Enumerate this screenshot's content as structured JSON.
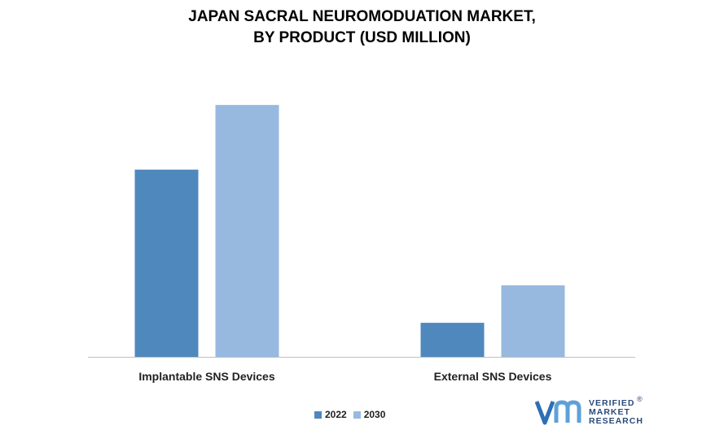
{
  "chart_data": {
    "type": "bar",
    "title_lines": [
      "JAPAN SACRAL NEUROMODUATION MARKET,",
      "BY PRODUCT (USD MILLION)"
    ],
    "categories": [
      "Implantable SNS Devices",
      "External SNS Devices"
    ],
    "series": [
      {
        "name": "2022",
        "values": [
          55,
          10
        ],
        "color": "#4f88bc"
      },
      {
        "name": "2030",
        "values": [
          74,
          21
        ],
        "color": "#98b9df"
      }
    ],
    "ylim": [
      0,
      80
    ],
    "xlabel": "",
    "ylabel": "",
    "grid": false,
    "legend_position": "bottom-center"
  },
  "logo": {
    "mark": "vmr",
    "lines": [
      "VERIFIED",
      "MARKET",
      "RESEARCH"
    ],
    "registered": "®"
  }
}
